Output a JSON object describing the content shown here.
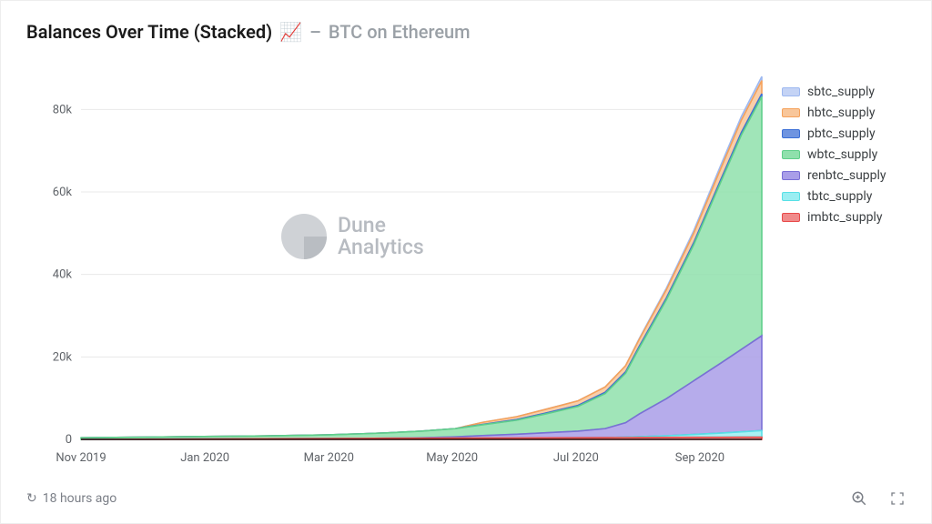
{
  "header": {
    "title_main": "Balances Over Time (Stacked)",
    "title_icon": "📈",
    "title_sep": "–",
    "title_sub": "BTC on Ethereum"
  },
  "watermark": {
    "line1": "Dune",
    "line2": "Analytics"
  },
  "footer": {
    "refresh_icon": "↻",
    "refresh_text": "18 hours ago"
  },
  "chart": {
    "type": "area-stacked",
    "background": "#ffffff",
    "grid_color": "#e8e8e8",
    "axis_color": "#000000",
    "label_color": "#5f6368",
    "label_fontsize": 13,
    "ylim": [
      0,
      90000
    ],
    "yticks": [
      0,
      20000,
      40000,
      60000,
      80000
    ],
    "ytick_labels": [
      "0",
      "20k",
      "40k",
      "60k",
      "80k"
    ],
    "x_categories": [
      "Nov 2019",
      "Jan 2020",
      "Mar 2020",
      "May 2020",
      "Jul 2020",
      "Sep 2020"
    ],
    "x_positions": [
      0,
      0.182,
      0.364,
      0.545,
      0.727,
      0.909
    ],
    "sample_x": [
      0,
      0.09,
      0.18,
      0.27,
      0.36,
      0.41,
      0.45,
      0.5,
      0.55,
      0.59,
      0.64,
      0.68,
      0.73,
      0.77,
      0.8,
      0.82,
      0.86,
      0.9,
      0.94,
      0.97,
      1.0
    ],
    "series": [
      {
        "key": "sbtc_supply",
        "label": "sbtc_supply",
        "color": "#9db8f0",
        "fill": "#c4d3f5",
        "values": [
          0,
          0,
          0,
          0,
          0,
          0,
          0,
          0,
          0,
          0,
          0,
          0,
          0,
          0,
          0,
          200,
          400,
          600,
          800,
          900,
          1000
        ]
      },
      {
        "key": "hbtc_supply",
        "label": "hbtc_supply",
        "color": "#f5a15a",
        "fill": "#f8c69a",
        "values": [
          0,
          0,
          0,
          0,
          0,
          0,
          0,
          0,
          0,
          500,
          700,
          900,
          1100,
          1300,
          1500,
          1700,
          2000,
          2300,
          2700,
          3000,
          3200
        ]
      },
      {
        "key": "pbtc_supply",
        "label": "pbtc_supply",
        "color": "#3b6fd6",
        "fill": "#6f94e0",
        "values": [
          0,
          0,
          0,
          0,
          0,
          0,
          0,
          0,
          0,
          100,
          150,
          200,
          250,
          300,
          350,
          400,
          450,
          500,
          550,
          600,
          650
        ]
      },
      {
        "key": "wbtc_supply",
        "label": "wbtc_supply",
        "color": "#5fcf8a",
        "fill": "#8fe0ac",
        "values": [
          400,
          500,
          600,
          700,
          900,
          1100,
          1300,
          1600,
          2000,
          2600,
          3400,
          4500,
          6000,
          8500,
          12000,
          16000,
          24000,
          33000,
          44000,
          52000,
          58000
        ]
      },
      {
        "key": "renbtc_supply",
        "label": "renbtc_supply",
        "color": "#7a6fd6",
        "fill": "#a99ee8",
        "values": [
          0,
          0,
          0,
          0,
          0,
          0,
          0,
          100,
          300,
          600,
          900,
          1200,
          1600,
          2200,
          3500,
          5500,
          9000,
          13000,
          17000,
          20000,
          23000
        ]
      },
      {
        "key": "tbtc_supply",
        "label": "tbtc_supply",
        "color": "#58e0e6",
        "fill": "#9aeef2",
        "values": [
          0,
          0,
          0,
          0,
          0,
          0,
          0,
          0,
          0,
          0,
          0,
          0,
          0,
          0,
          100,
          200,
          400,
          700,
          1000,
          1300,
          1600
        ]
      },
      {
        "key": "imbtc_supply",
        "label": "imbtc_supply",
        "color": "#e84a4a",
        "fill": "#f08a8a",
        "values": [
          0,
          50,
          100,
          150,
          200,
          250,
          280,
          300,
          320,
          340,
          360,
          380,
          400,
          420,
          440,
          460,
          480,
          500,
          520,
          530,
          540
        ]
      }
    ]
  }
}
